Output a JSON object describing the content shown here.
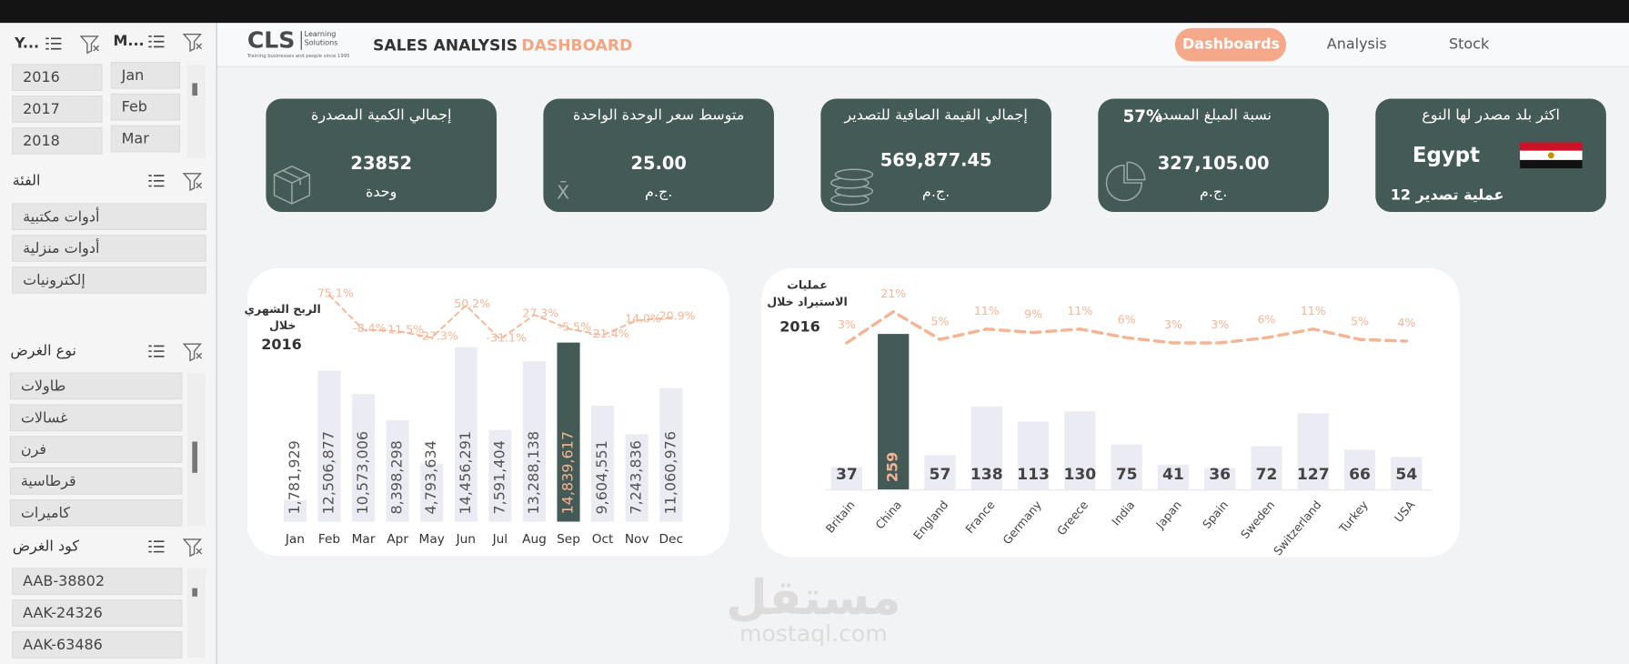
{
  "logo": {
    "mark": "CLS",
    "name": [
      "Learning",
      "Solutions"
    ],
    "tagline": "Training businesses and people since 1995"
  },
  "header": {
    "title": "SALES ANALYSIS",
    "title_accent": "DASHBOARD"
  },
  "nav": [
    "Dashboards",
    "Analysis",
    "Stock"
  ],
  "slicers": [
    {
      "title": "Y...",
      "items": [
        "2016",
        "2017",
        "2018"
      ]
    },
    {
      "title": "M...",
      "items": [
        "Jan",
        "Feb",
        "Mar"
      ]
    },
    {
      "title": "الفئة",
      "items": [
        "أدوات مكتبية",
        "أدوات منزلية",
        "إلكترونيات"
      ]
    },
    {
      "title": "نوع الغرض",
      "items": [
        "طاولات",
        "غسالات",
        "فرن",
        "قرطاسية",
        "كاميرات"
      ]
    },
    {
      "title": "كود الغرض",
      "items": [
        "AAB-38802",
        "AAK-24326",
        "AAK-63486"
      ]
    }
  ],
  "kpis": [
    {
      "title": "إجمالي الكمية المصدرة",
      "value": "23852",
      "unit": "وحدة"
    },
    {
      "title": "متوسط سعر الوحدة الواحدة",
      "value": "25.00",
      "unit": "ج.م.",
      "icon": "X̄"
    },
    {
      "title": "إجمالي القيمة الصافية للتصدير",
      "value": "569,877.45",
      "unit": "ج.م."
    },
    {
      "title": "نسبة المبلغ المسدد",
      "rate": "57%",
      "value": "327,105.00",
      "unit": "ج.م."
    },
    {
      "title": "اكثر بلد مصدر لها النوع",
      "value": "Egypt",
      "note": "12 عملية تصدير"
    }
  ],
  "chart_data": [
    {
      "type": "bar",
      "title_lines": [
        "الربح الشهري",
        "خلال"
      ],
      "subtitle": "2016",
      "categories": [
        "Jan",
        "Feb",
        "Mar",
        "Apr",
        "May",
        "Jun",
        "Jul",
        "Aug",
        "Sep",
        "Oct",
        "Nov",
        "Dec"
      ],
      "values": [
        1781929,
        12506877,
        10573006,
        8398298,
        4793634,
        14456291,
        7591404,
        13288138,
        14839617,
        9604551,
        7243836,
        11060976
      ],
      "value_labels": [
        "1,781,929",
        "12,506,877",
        "10,573,006",
        "8,398,298",
        "4,793,634",
        "14,456,291",
        "7,591,404",
        "13,288,138",
        "14,839,617",
        "9,604,551",
        "7,243,836",
        "11,060,976"
      ],
      "color": "#ebebf3",
      "colors": [
        "#ebebf3",
        "#ebebf3",
        "#ebebf3",
        "#ebebf3",
        "#ebebf3",
        "#ebebf3",
        "#ebebf3",
        "#ebebf3",
        "#435a56",
        "#ebebf3",
        "#ebebf3",
        "#ebebf3"
      ],
      "ylim": [
        0,
        15500000
      ],
      "line": {
        "values": [
          null,
          75.1,
          -8.4,
          -11.5,
          -27.3,
          50.2,
          -31.1,
          27.3,
          -5.5,
          -21.4,
          14.0,
          20.9
        ],
        "value_labels": [
          null,
          "75.1%",
          "-8.4%",
          "-11.5%",
          "-27.3%",
          "50.2%",
          "-31.1%",
          "27.3%",
          "-5.5%",
          "-21.4%",
          "14.0%",
          "20.9%"
        ],
        "color": "#f5b494",
        "axis": "y2"
      },
      "y2lim": [
        -40,
        80
      ]
    },
    {
      "type": "bar",
      "title_lines": [
        "عمليات",
        "الاستيراد خلال"
      ],
      "subtitle": "2016",
      "categories": [
        "Britain",
        "China",
        "England",
        "France",
        "Germany",
        "Greece",
        "India",
        "Japan",
        "Spain",
        "Sweden",
        "Switzerland",
        "Turkey",
        "USA"
      ],
      "values": [
        37,
        259,
        57,
        138,
        113,
        130,
        75,
        41,
        36,
        72,
        127,
        66,
        54
      ],
      "color": "#ebebf3",
      "colors": [
        "#ebebf3",
        "#435a56",
        "#ebebf3",
        "#ebebf3",
        "#ebebf3",
        "#ebebf3",
        "#ebebf3",
        "#ebebf3",
        "#ebebf3",
        "#ebebf3",
        "#ebebf3",
        "#ebebf3",
        "#ebebf3"
      ],
      "ylim": [
        0,
        270
      ],
      "line": {
        "values": [
          3,
          21,
          5,
          11,
          9,
          11,
          6,
          3,
          3,
          6,
          11,
          5,
          4
        ],
        "value_labels": [
          "3%",
          "21%",
          "5%",
          "11%",
          "9%",
          "11%",
          "6%",
          "3%",
          "3%",
          "6%",
          "11%",
          "5%",
          "4%"
        ],
        "color": "#f5b494",
        "axis": "y2"
      },
      "y2lim": [
        0,
        60
      ]
    }
  ],
  "watermark": [
    "مستقل",
    "mostaql.com"
  ]
}
